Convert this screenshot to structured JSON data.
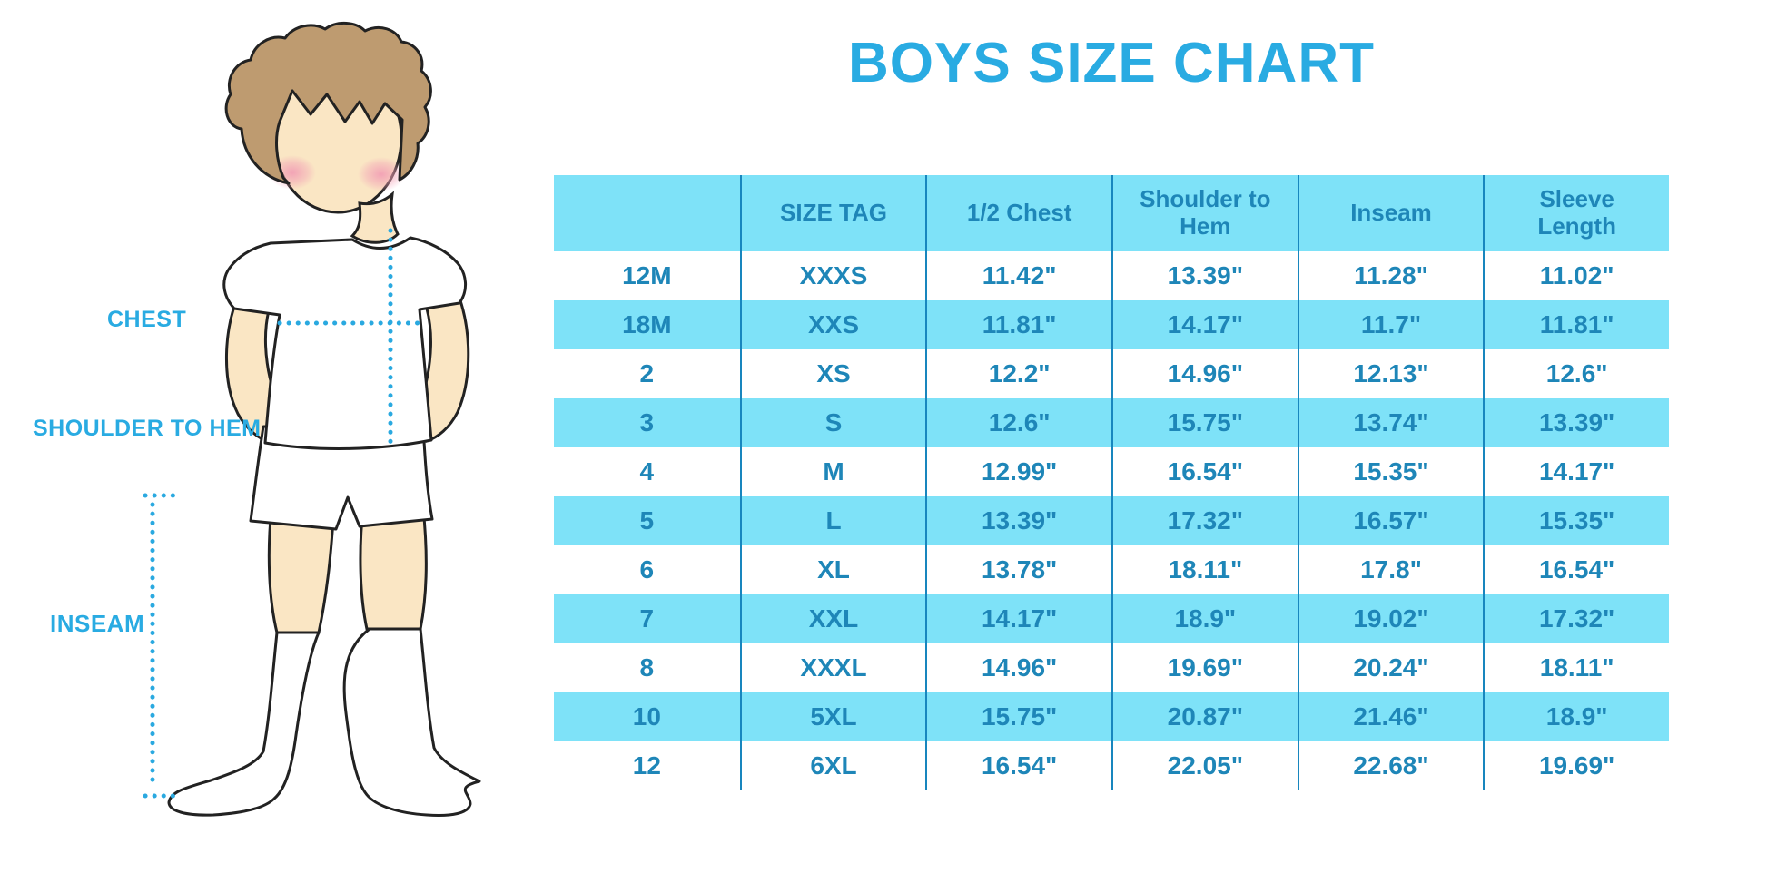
{
  "page": {
    "title": "BOYS SIZE CHART"
  },
  "colors": {
    "accent_blue": "#29ABE2",
    "table_text_blue": "#1E86B8",
    "table_fill_light_blue": "#7EE2F8",
    "grid_line_blue": "#1886BE",
    "dotted_line_blue": "#2AA9E0",
    "skin": "#FAE6C4",
    "hair_brown": "#BE9B70",
    "blush_pink": "#F2A0B5",
    "outline_dark": "#222222"
  },
  "figure": {
    "labels": {
      "chest": "CHEST",
      "shoulder_to_hem": "SHOULDER TO HEM",
      "inseam": "INSEAM"
    }
  },
  "table": {
    "headers": [
      "",
      "SIZE TAG",
      "1/2 Chest",
      "Shoulder to Hem",
      "Inseam",
      "Sleeve Length"
    ],
    "rows": [
      [
        "12M",
        "XXXS",
        "11.42\"",
        "13.39\"",
        "11.28\"",
        "11.02\""
      ],
      [
        "18M",
        "XXS",
        "11.81\"",
        "14.17\"",
        "11.7\"",
        "11.81\""
      ],
      [
        "2",
        "XS",
        "12.2\"",
        "14.96\"",
        "12.13\"",
        "12.6\""
      ],
      [
        "3",
        "S",
        "12.6\"",
        "15.75\"",
        "13.74\"",
        "13.39\""
      ],
      [
        "4",
        "M",
        "12.99\"",
        "16.54\"",
        "15.35\"",
        "14.17\""
      ],
      [
        "5",
        "L",
        "13.39\"",
        "17.32\"",
        "16.57\"",
        "15.35\""
      ],
      [
        "6",
        "XL",
        "13.78\"",
        "18.11\"",
        "17.8\"",
        "16.54\""
      ],
      [
        "7",
        "XXL",
        "14.17\"",
        "18.9\"",
        "19.02\"",
        "17.32\""
      ],
      [
        "8",
        "XXXL",
        "14.96\"",
        "19.69\"",
        "20.24\"",
        "18.11\""
      ],
      [
        "10",
        "5XL",
        "15.75\"",
        "20.87\"",
        "21.46\"",
        "18.9\""
      ],
      [
        "12",
        "6XL",
        "16.54\"",
        "22.05\"",
        "22.68\"",
        "19.69\""
      ]
    ]
  },
  "chart_data": {
    "type": "table",
    "title": "BOYS SIZE CHART",
    "columns": [
      "",
      "SIZE TAG",
      "1/2 Chest",
      "Shoulder to Hem",
      "Inseam",
      "Sleeve Length"
    ],
    "rows": [
      [
        "12M",
        "XXXS",
        "11.42\"",
        "13.39\"",
        "11.28\"",
        "11.02\""
      ],
      [
        "18M",
        "XXS",
        "11.81\"",
        "14.17\"",
        "11.7\"",
        "11.81\""
      ],
      [
        "2",
        "XS",
        "12.2\"",
        "14.96\"",
        "12.13\"",
        "12.6\""
      ],
      [
        "3",
        "S",
        "12.6\"",
        "15.75\"",
        "13.74\"",
        "13.39\""
      ],
      [
        "4",
        "M",
        "12.99\"",
        "16.54\"",
        "15.35\"",
        "14.17\""
      ],
      [
        "5",
        "L",
        "13.39\"",
        "17.32\"",
        "16.57\"",
        "15.35\""
      ],
      [
        "6",
        "XL",
        "13.78\"",
        "18.11\"",
        "17.8\"",
        "16.54\""
      ],
      [
        "7",
        "XXL",
        "14.17\"",
        "18.9\"",
        "19.02\"",
        "17.32\""
      ],
      [
        "8",
        "XXXL",
        "14.96\"",
        "19.69\"",
        "20.24\"",
        "18.11\""
      ],
      [
        "10",
        "5XL",
        "15.75\"",
        "20.87\"",
        "21.46\"",
        "18.9\""
      ],
      [
        "12",
        "6XL",
        "16.54\"",
        "22.05\"",
        "22.68\"",
        "19.69\""
      ]
    ],
    "units": "inches",
    "measurement_annotations": [
      "CHEST",
      "SHOULDER TO HEM",
      "INSEAM"
    ]
  }
}
